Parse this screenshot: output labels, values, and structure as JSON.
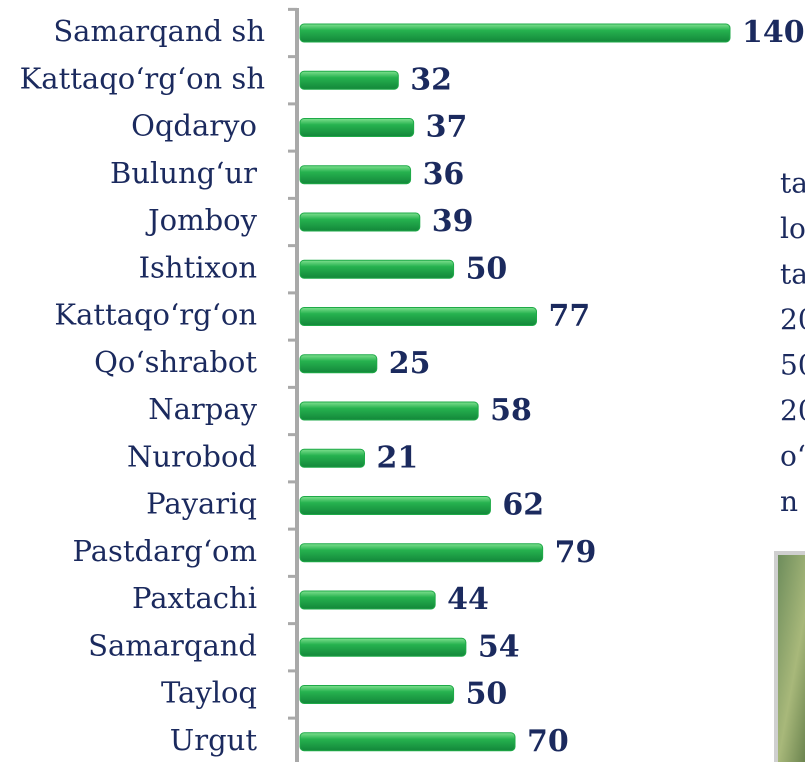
{
  "chart_data": {
    "type": "bar",
    "orientation": "horizontal",
    "categories": [
      "Samarqand sh",
      "Kattaqo‘rg‘on sh",
      "Oqdaryo",
      "Bulung‘ur",
      "Jomboy",
      "Ishtixon",
      "Kattaqo‘rg‘on",
      "Qo‘shrabot",
      "Narpay",
      "Nurobod",
      "Payariq",
      "Pastdarg‘om",
      "Paxtachi",
      "Samarqand",
      "Tayloq",
      "Urgut"
    ],
    "values": [
      140,
      32,
      37,
      36,
      39,
      50,
      77,
      25,
      58,
      21,
      62,
      79,
      44,
      54,
      50,
      70
    ],
    "color": "#1faa48",
    "xlim": [
      0,
      140
    ]
  },
  "side_text": [
    "ta",
    "lo",
    "ta",
    "20",
    "50",
    "20",
    "o‘",
    "n"
  ]
}
